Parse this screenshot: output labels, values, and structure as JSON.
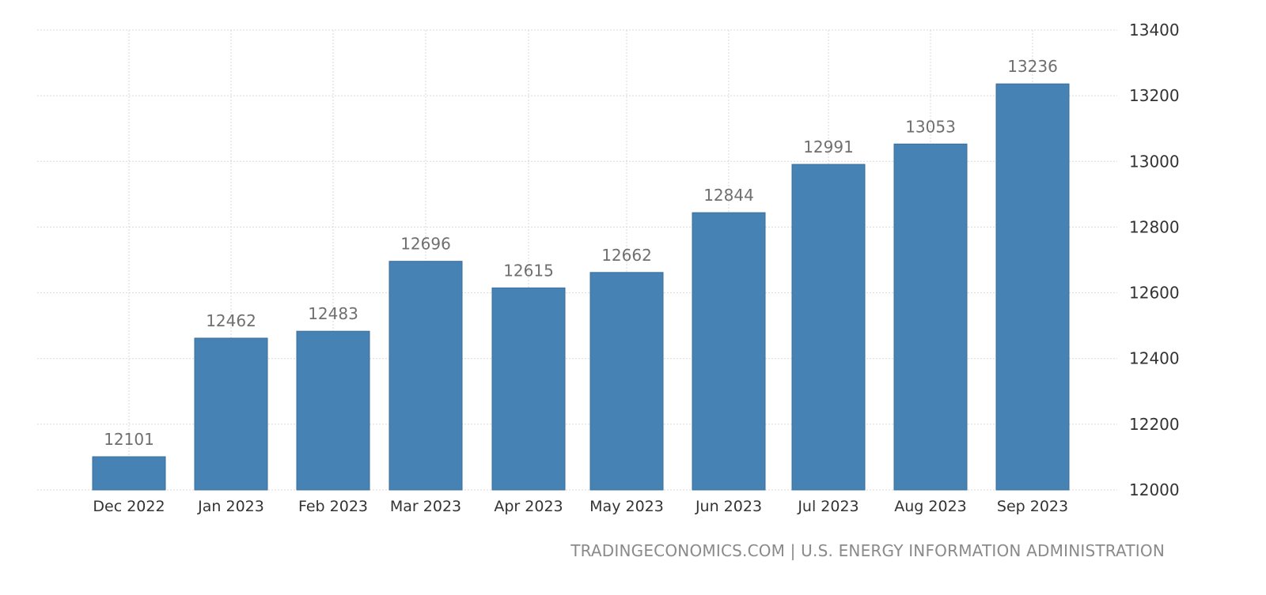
{
  "source_text": "TRADINGECONOMICS.COM | U.S. ENERGY INFORMATION ADMINISTRATION",
  "colors": {
    "bar": "#4682b4",
    "grid": "#d9d9d9",
    "label": "#6f6f6f"
  },
  "chart_data": {
    "type": "bar",
    "title": "",
    "xlabel": "",
    "ylabel": "",
    "categories": [
      "Dec 2022",
      "Jan 2023",
      "Feb 2023",
      "Mar 2023",
      "Apr 2023",
      "May 2023",
      "Jun 2023",
      "Jul 2023",
      "Aug 2023",
      "Sep 2023"
    ],
    "values": [
      12101,
      12462,
      12483,
      12696,
      12615,
      12662,
      12844,
      12991,
      13053,
      13236
    ],
    "ylim": [
      12000,
      13400
    ],
    "yticks": [
      12000,
      12200,
      12400,
      12600,
      12800,
      13000,
      13200,
      13400
    ],
    "y_axis_position": "right",
    "grid": true,
    "data_labels": true,
    "legend": "none"
  }
}
